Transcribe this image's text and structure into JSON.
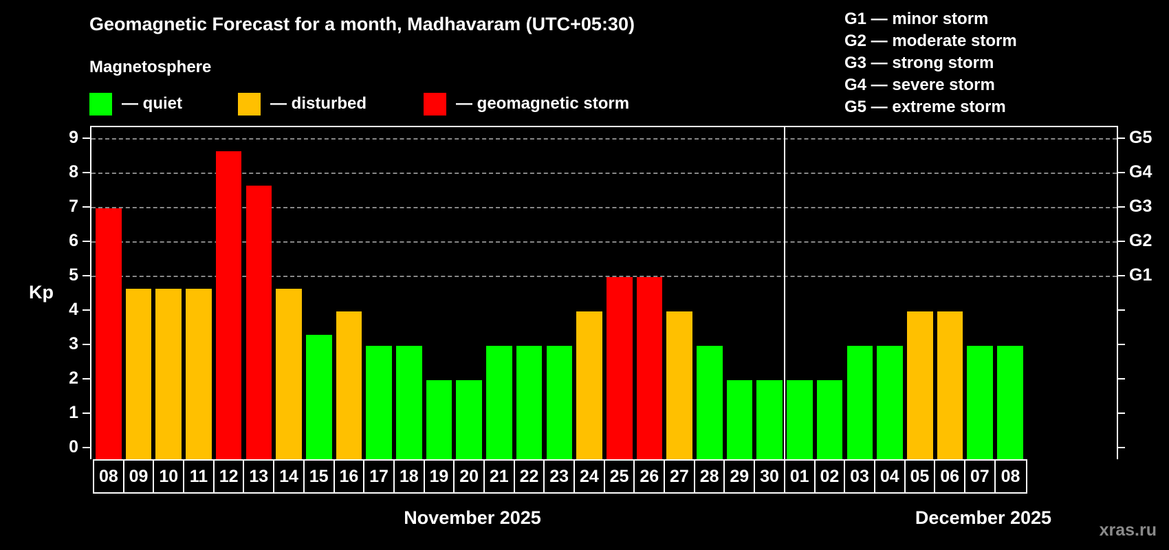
{
  "title": "Geomagnetic Forecast for a month, Madhavaram (UTC+05:30)",
  "subtitle": "Magnetosphere",
  "legend": [
    {
      "label": "— quiet",
      "color": "#00ff00"
    },
    {
      "label": "— disturbed",
      "color": "#ffc000"
    },
    {
      "label": "— geomagnetic storm",
      "color": "#ff0000"
    }
  ],
  "g_legend": [
    "G1 — minor storm",
    "G2 — moderate storm",
    "G3 — strong storm",
    "G4 — severe storm",
    "G5 — extreme storm"
  ],
  "y_axis_label": "Kp",
  "watermark": "xras.ru",
  "months": [
    {
      "label": "November 2025"
    },
    {
      "label": "December 2025"
    }
  ],
  "chart_data": {
    "type": "bar",
    "title": "Geomagnetic Forecast for a month, Madhavaram (UTC+05:30)",
    "xlabel": "",
    "ylabel": "Kp",
    "ylim": [
      0,
      9
    ],
    "yticks": [
      0,
      1,
      2,
      3,
      4,
      5,
      6,
      7,
      8,
      9
    ],
    "right_axis_labels": {
      "5": "G1",
      "6": "G2",
      "7": "G3",
      "8": "G4",
      "9": "G5"
    },
    "grid": "dashed horizontal at Kp 5–9",
    "month_groups": [
      {
        "label": "November 2025",
        "days": [
          "08",
          "09",
          "10",
          "11",
          "12",
          "13",
          "14",
          "15",
          "16",
          "17",
          "18",
          "19",
          "20",
          "21",
          "22",
          "23",
          "24",
          "25",
          "26",
          "27",
          "28",
          "29",
          "30"
        ]
      },
      {
        "label": "December 2025",
        "days": [
          "01",
          "02",
          "03",
          "04",
          "05",
          "06",
          "07",
          "08"
        ]
      }
    ],
    "categories": [
      "08",
      "09",
      "10",
      "11",
      "12",
      "13",
      "14",
      "15",
      "16",
      "17",
      "18",
      "19",
      "20",
      "21",
      "22",
      "23",
      "24",
      "25",
      "26",
      "27",
      "28",
      "29",
      "30",
      "01",
      "02",
      "03",
      "04",
      "05",
      "06",
      "07",
      "08"
    ],
    "values": [
      7,
      4.67,
      4.67,
      4.67,
      8.67,
      7.67,
      4.67,
      3.33,
      4,
      3,
      3,
      2,
      2,
      3,
      3,
      3,
      4,
      5,
      5,
      4,
      3,
      2,
      2,
      2,
      2,
      3,
      3,
      4,
      4,
      3,
      3
    ],
    "status": [
      "storm",
      "disturbed",
      "disturbed",
      "disturbed",
      "storm",
      "storm",
      "disturbed",
      "quiet",
      "disturbed",
      "quiet",
      "quiet",
      "quiet",
      "quiet",
      "quiet",
      "quiet",
      "quiet",
      "disturbed",
      "storm",
      "storm",
      "disturbed",
      "quiet",
      "quiet",
      "quiet",
      "quiet",
      "quiet",
      "quiet",
      "quiet",
      "disturbed",
      "disturbed",
      "quiet",
      "quiet"
    ],
    "colors": {
      "quiet": "#00ff00",
      "disturbed": "#ffc000",
      "storm": "#ff0000"
    },
    "legend": [
      "— quiet",
      "— disturbed",
      "— geomagnetic storm"
    ],
    "legend_position": "top"
  }
}
